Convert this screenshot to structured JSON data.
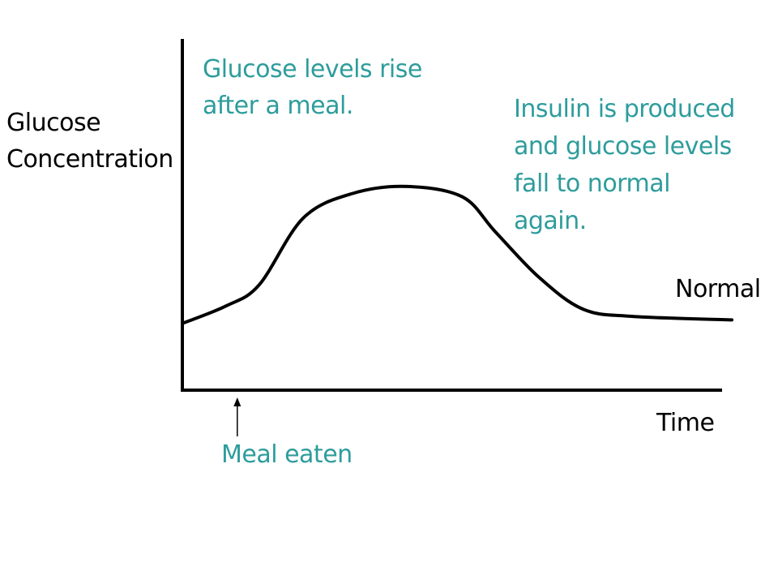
{
  "chart_data": {
    "type": "line",
    "title": "",
    "xlabel": "Time",
    "ylabel_lines": [
      "Glucose",
      "Concentration"
    ],
    "axis_values_shown": false,
    "series": [
      {
        "x": [
          0,
          8,
          14,
          22,
          31,
          41,
          51,
          57,
          65,
          73,
          82,
          100
        ],
        "y": [
          19,
          24,
          30,
          49,
          56,
          58,
          55,
          45,
          32,
          23,
          21,
          20
        ]
      }
    ],
    "annotations": {
      "rise": [
        "Glucose levels rise",
        "after a meal."
      ],
      "insulin": [
        "Insulin is produced",
        "and glucose levels",
        "fall to normal",
        "again."
      ],
      "normal": "Normal",
      "meal": "Meal eaten"
    },
    "meal_marker_x": 10,
    "colors": {
      "axis": "#000000",
      "curve": "#000000",
      "annotation": "#2e9c9c"
    }
  }
}
